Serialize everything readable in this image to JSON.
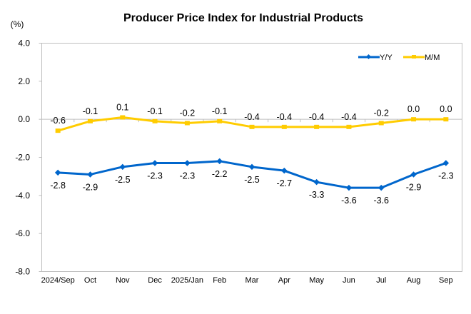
{
  "chart_data": {
    "type": "line",
    "title": "Producer Price Index for Industrial Products",
    "ylabel": "(%)",
    "xlabel": "",
    "ylim": [
      -8.0,
      4.0
    ],
    "yticks": [
      4.0,
      2.0,
      0.0,
      -2.0,
      -4.0,
      -6.0,
      -8.0
    ],
    "ytick_labels": [
      "4.0",
      "2.0",
      "0.0",
      "-2.0",
      "-4.0",
      "-6.0",
      "-8.0"
    ],
    "categories": [
      "2024/Sep",
      "Oct",
      "Nov",
      "Dec",
      "2025/Jan",
      "Feb",
      "Mar",
      "Apr",
      "May",
      "Jun",
      "Jul",
      "Aug",
      "Sep"
    ],
    "grid": false,
    "legend_position": "top-right",
    "series": [
      {
        "name": "Y/Y",
        "color": "#0066cc",
        "marker": "diamond",
        "label_position": "below",
        "values": [
          -2.8,
          -2.9,
          -2.5,
          -2.3,
          -2.3,
          -2.2,
          -2.5,
          -2.7,
          -3.3,
          -3.6,
          -3.6,
          -2.9,
          -2.3
        ],
        "labels": [
          "-2.8",
          "-2.9",
          "-2.5",
          "-2.3",
          "-2.3",
          "-2.2",
          "-2.5",
          "-2.7",
          "-3.3",
          "-3.6",
          "-3.6",
          "-2.9",
          "-2.3"
        ]
      },
      {
        "name": "M/M",
        "color": "#ffcc00",
        "marker": "square",
        "label_position": "above",
        "values": [
          -0.6,
          -0.1,
          0.1,
          -0.1,
          -0.2,
          -0.1,
          -0.4,
          -0.4,
          -0.4,
          -0.4,
          -0.2,
          0.0,
          0.0
        ],
        "labels": [
          "-0.6",
          "-0.1",
          "0.1",
          "-0.1",
          "-0.2",
          "-0.1",
          "-0.4",
          "-0.4",
          "-0.4",
          "-0.4",
          "-0.2",
          "0.0",
          "0.0"
        ]
      }
    ]
  }
}
